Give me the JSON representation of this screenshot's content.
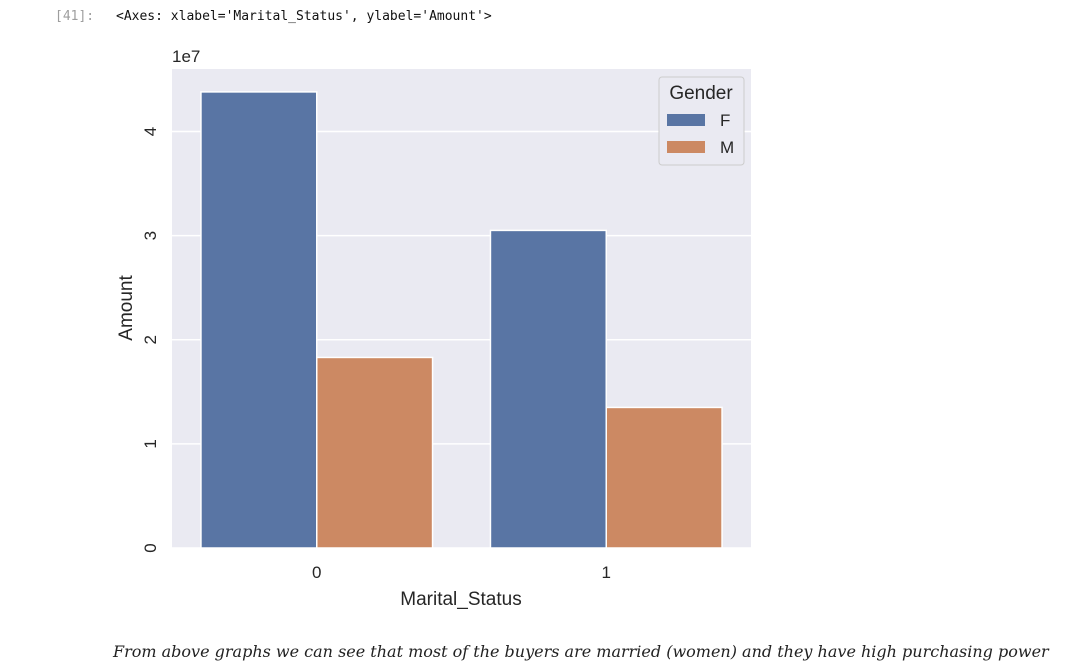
{
  "cell": {
    "prompt": "[41]:",
    "output": "<Axes: xlabel='Marital_Status', ylabel='Amount'>"
  },
  "chart_data": {
    "type": "bar",
    "categories": [
      "0",
      "1"
    ],
    "series": [
      {
        "name": "F",
        "values": [
          43800000,
          30500000
        ],
        "color": "#5975a4"
      },
      {
        "name": "M",
        "values": [
          18300000,
          13500000
        ],
        "color": "#cc8963"
      }
    ],
    "xlabel": "Marital_Status",
    "ylabel": "Amount",
    "ylim": [
      0,
      46000000
    ],
    "yticks": [
      0,
      1,
      2,
      3,
      4
    ],
    "ytick_labels": [
      "0",
      "1",
      "2",
      "3",
      "4"
    ],
    "y_scale_label": "1e7",
    "grid": true,
    "background": "#eaeaf2",
    "legend": {
      "title": "Gender",
      "position": "top-right",
      "entries": [
        "F",
        "M"
      ]
    }
  },
  "caption": "From above graphs we can see that most of the buyers are married (women) and they have high purchasing power"
}
